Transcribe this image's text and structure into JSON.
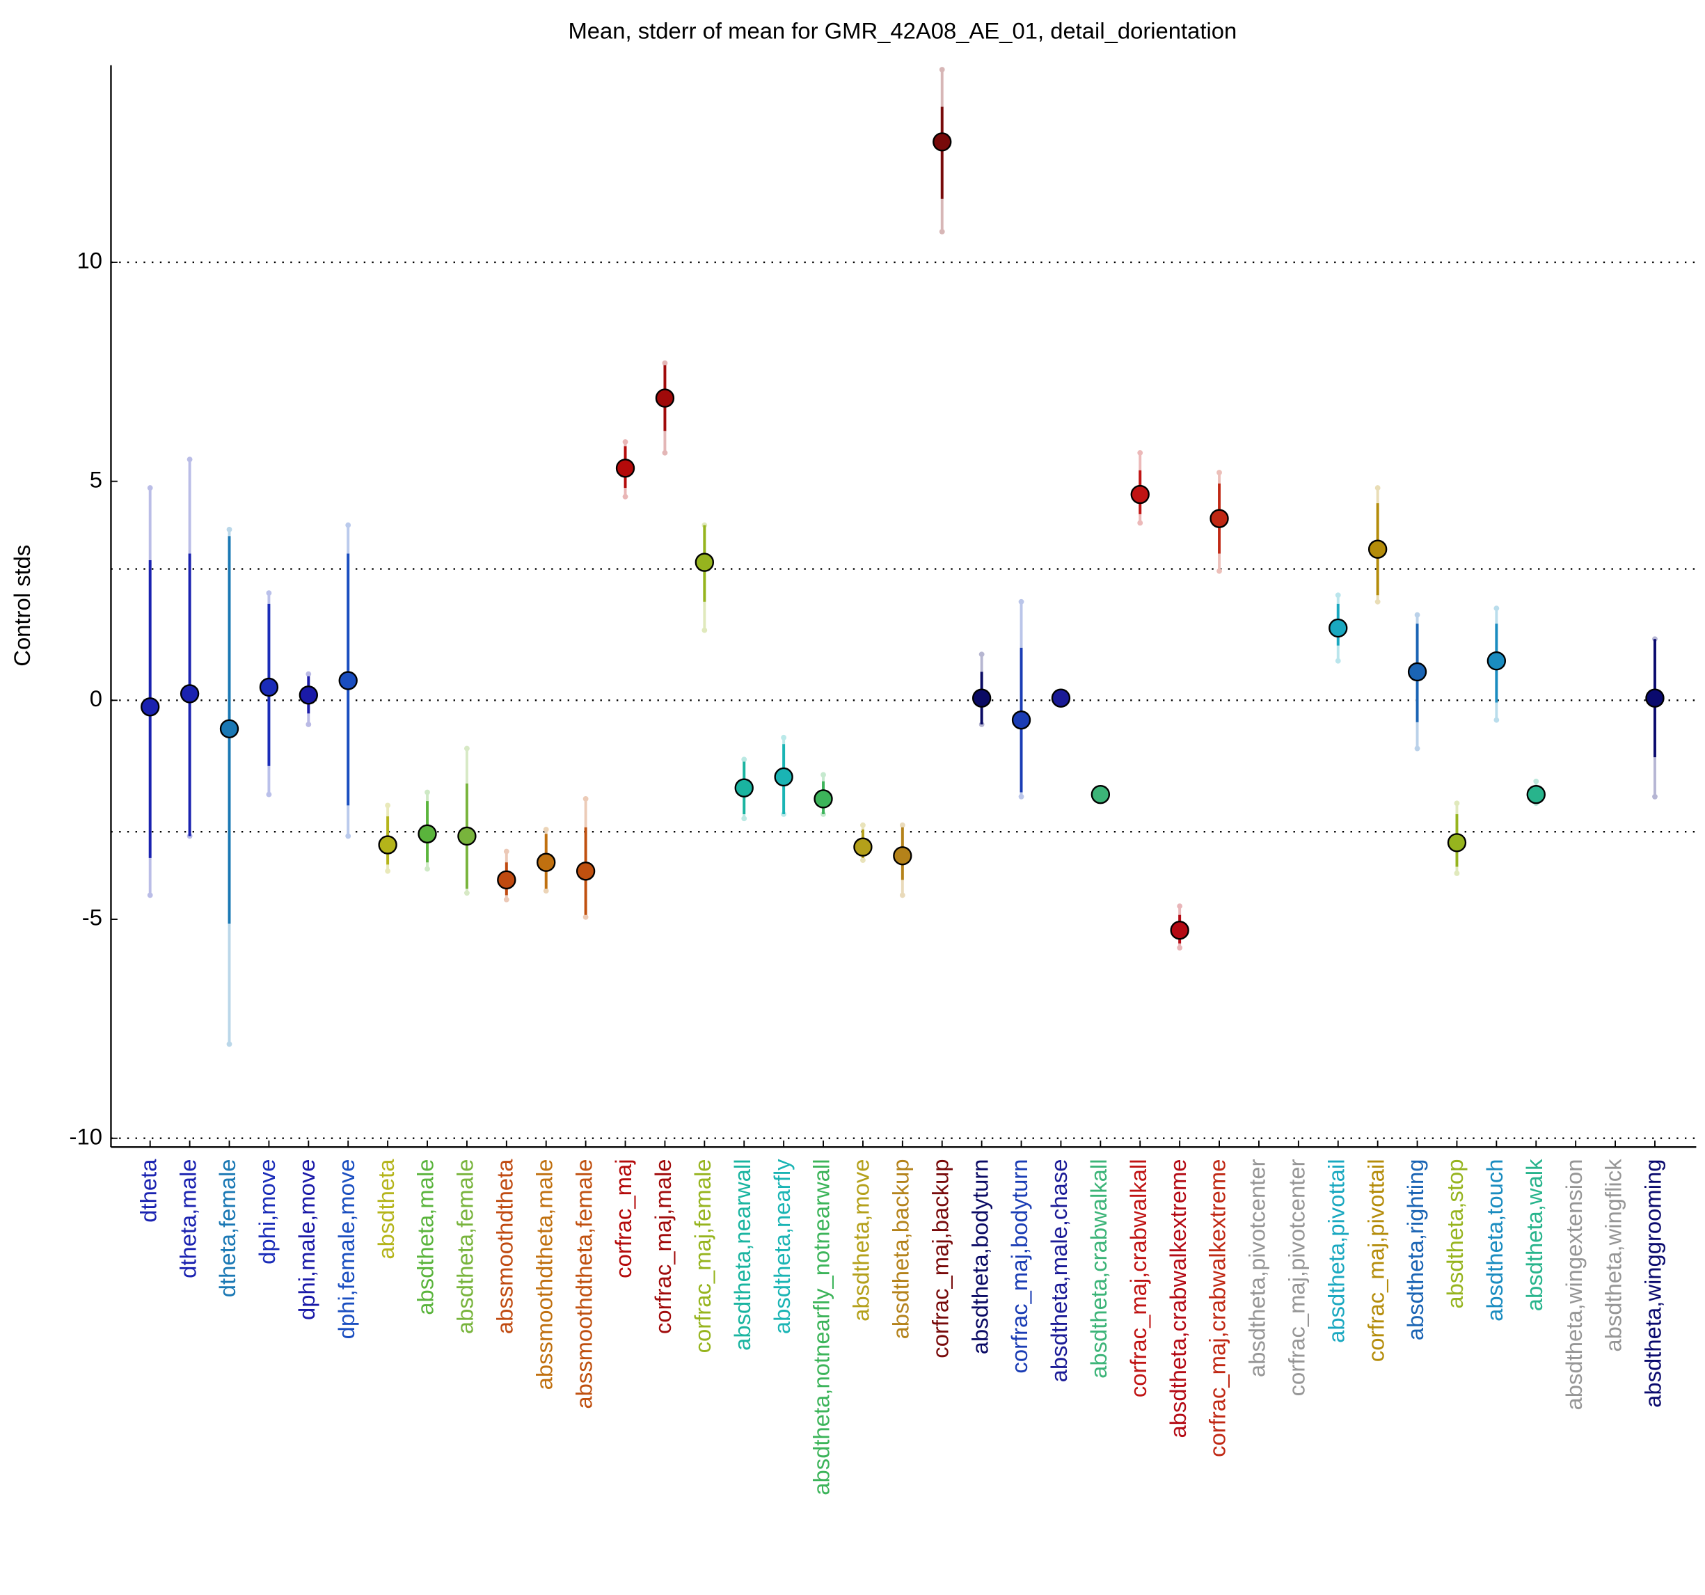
{
  "chart_data": {
    "type": "errorbar",
    "title": "Mean, stderr of mean for GMR_42A08_AE_01, detail_dorientation",
    "ylabel": "Control stds",
    "ylim": [
      -10.2,
      14.5
    ],
    "yticks": [
      -10,
      -5,
      0,
      5,
      10
    ],
    "reference_lines": [
      -10,
      -3,
      0,
      3,
      10
    ],
    "categories": [
      "dtheta",
      "dtheta,male",
      "dtheta,female",
      "dphi,move",
      "dphi,male,move",
      "dphi,female,move",
      "absdtheta",
      "absdtheta,male",
      "absdtheta,female",
      "abssmoothdtheta",
      "abssmoothdtheta,male",
      "abssmoothdtheta,female",
      "corfrac_maj",
      "corfrac_maj,male",
      "corfrac_maj,female",
      "absdtheta,nearwall",
      "absdtheta,nearfly",
      "absdtheta,notnearfly_notnearwall",
      "absdtheta,move",
      "absdtheta,backup",
      "corfrac_maj,backup",
      "absdtheta,bodyturn",
      "corfrac_maj,bodyturn",
      "absdtheta,male,chase",
      "absdtheta,crabwalkall",
      "corfrac_maj,crabwalkall",
      "absdtheta,crabwalkextreme",
      "corfrac_maj,crabwalkextreme",
      "absdtheta,pivotcenter",
      "corfrac_maj,pivotcenter",
      "absdtheta,pivottail",
      "corfrac_maj,pivottail",
      "absdtheta,righting",
      "absdtheta,stop",
      "absdtheta,touch",
      "absdtheta,walk",
      "absdtheta,wingextension",
      "absdtheta,wingflick",
      "absdtheta,winggrooming"
    ],
    "colors": [
      "#1a22b0",
      "#1a22b0",
      "#1a78b4",
      "#1a2cb8",
      "#1a1aa8",
      "#1a4ec0",
      "#b4b41a",
      "#5ab43c",
      "#78b43c",
      "#c04a10",
      "#c0700f",
      "#c0500f",
      "#b40a0a",
      "#a00a0a",
      "#96b41e",
      "#1ab4a0",
      "#1ab4b4",
      "#3cb45a",
      "#b4a01a",
      "#b4821a",
      "#780a0a",
      "#0a0a64",
      "#1a3cb4",
      "#1a1a96",
      "#3cb478",
      "#c01414",
      "#b40a14",
      "#c02814",
      "#969696",
      "#969696",
      "#1aa8c0",
      "#b48c0a",
      "#1a64b4",
      "#96b41e",
      "#1a8cc0",
      "#28b48c",
      "#969696",
      "#969696",
      "#0a0a6e"
    ],
    "values": [
      -0.15,
      0.15,
      -0.65,
      0.3,
      0.12,
      0.45,
      -3.3,
      -3.05,
      -3.1,
      -4.1,
      -3.7,
      -3.9,
      5.3,
      6.9,
      3.15,
      -2.0,
      -1.75,
      -2.25,
      -3.35,
      -3.55,
      12.75,
      0.05,
      -0.45,
      0.05,
      -2.15,
      4.7,
      -5.25,
      4.15,
      null,
      null,
      1.65,
      3.45,
      0.65,
      -3.25,
      0.9,
      -2.15,
      null,
      null,
      0.05
    ],
    "stderr": [
      [
        -3.6,
        3.2
      ],
      [
        -3.1,
        3.35
      ],
      [
        -5.1,
        3.75
      ],
      [
        -1.5,
        2.2
      ],
      [
        -0.3,
        0.55
      ],
      [
        -2.4,
        3.35
      ],
      [
        -3.75,
        -2.65
      ],
      [
        -3.7,
        -2.3
      ],
      [
        -4.3,
        -1.9
      ],
      [
        -4.45,
        -3.7
      ],
      [
        -4.3,
        -3.05
      ],
      [
        -4.9,
        -2.9
      ],
      [
        4.85,
        5.8
      ],
      [
        6.15,
        7.65
      ],
      [
        2.25,
        4.0
      ],
      [
        -2.6,
        -1.4
      ],
      [
        -2.6,
        -1.0
      ],
      [
        -2.6,
        -1.85
      ],
      [
        -3.6,
        -2.95
      ],
      [
        -4.1,
        -2.9
      ],
      [
        11.45,
        13.55
      ],
      [
        -0.55,
        0.65
      ],
      [
        -2.1,
        1.2
      ],
      [
        -0.05,
        0.15
      ],
      [
        -2.25,
        -2.05
      ],
      [
        4.25,
        5.25
      ],
      [
        -5.55,
        -4.9
      ],
      [
        3.35,
        4.95
      ],
      null,
      null,
      [
        1.25,
        2.2
      ],
      [
        2.4,
        4.5
      ],
      [
        -0.5,
        1.75
      ],
      [
        -3.8,
        -2.6
      ],
      [
        -0.05,
        1.75
      ],
      [
        -2.25,
        -2.0
      ],
      null,
      null,
      [
        -1.3,
        1.4
      ]
    ],
    "spread": [
      [
        -4.45,
        4.85
      ],
      [
        -3.1,
        5.5
      ],
      [
        -7.85,
        3.9
      ],
      [
        -2.15,
        2.45
      ],
      [
        -0.55,
        0.6
      ],
      [
        -3.1,
        4.0
      ],
      [
        -3.9,
        -2.4
      ],
      [
        -3.85,
        -2.1
      ],
      [
        -4.4,
        -1.1
      ],
      [
        -4.55,
        -3.45
      ],
      [
        -4.35,
        -2.95
      ],
      [
        -4.95,
        -2.25
      ],
      [
        4.65,
        5.9
      ],
      [
        5.65,
        7.7
      ],
      [
        1.6,
        4.0
      ],
      [
        -2.7,
        -1.35
      ],
      [
        -2.6,
        -0.85
      ],
      [
        -2.6,
        -1.7
      ],
      [
        -3.65,
        -2.85
      ],
      [
        -4.45,
        -2.85
      ],
      [
        10.7,
        14.4
      ],
      [
        -0.55,
        1.05
      ],
      [
        -2.2,
        2.25
      ],
      [
        -0.05,
        0.15
      ],
      [
        -2.3,
        -2.0
      ],
      [
        4.05,
        5.65
      ],
      [
        -5.65,
        -4.7
      ],
      [
        2.95,
        5.2
      ],
      null,
      null,
      [
        0.9,
        2.4
      ],
      [
        2.25,
        4.85
      ],
      [
        -1.1,
        1.95
      ],
      [
        -3.95,
        -2.35
      ],
      [
        -0.45,
        2.1
      ],
      [
        -2.35,
        -1.85
      ],
      null,
      null,
      [
        -2.2,
        1.4
      ]
    ]
  }
}
